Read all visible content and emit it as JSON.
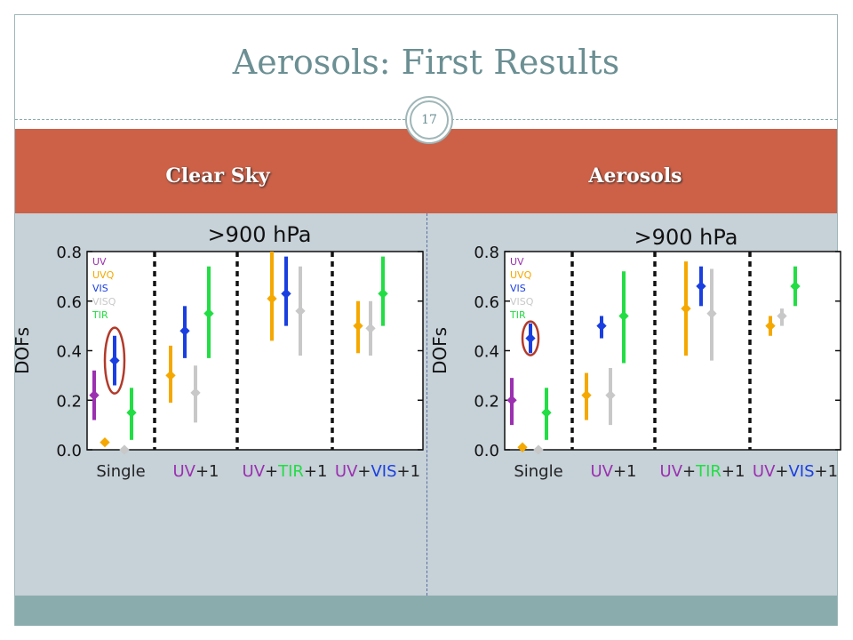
{
  "slide": {
    "title": "Aerosols: First Results",
    "number": "17",
    "columns": [
      "Clear Sky",
      "Aerosols"
    ],
    "colors": {
      "header_band": "#cc6148",
      "body_bg": "#c6d1d8",
      "footer_band": "#8aacad",
      "title_text": "#6b8f93"
    }
  },
  "chart_data": [
    {
      "type": "scatter",
      "panel": "Clear Sky",
      "title": ">900 hPa",
      "ylabel": "DOFs",
      "ylim": [
        0.0,
        0.8
      ],
      "yticks": [
        "0.0",
        "0.2",
        "0.4",
        "0.6",
        "0.8"
      ],
      "groups": [
        {
          "label": [
            {
              "text": "Single",
              "color": "#222222"
            }
          ]
        },
        {
          "label": [
            {
              "text": "UV",
              "color": "#9b30b0"
            },
            {
              "text": "+1",
              "color": "#222222"
            }
          ]
        },
        {
          "label": [
            {
              "text": "UV",
              "color": "#9b30b0"
            },
            {
              "text": "+",
              "color": "#222222"
            },
            {
              "text": "TIR",
              "color": "#22dd44"
            },
            {
              "text": "+1",
              "color": "#222222"
            }
          ]
        },
        {
          "label": [
            {
              "text": "UV",
              "color": "#9b30b0"
            },
            {
              "text": "+",
              "color": "#222222"
            },
            {
              "text": "VIS",
              "color": "#1a3fe0"
            },
            {
              "text": "+1",
              "color": "#222222"
            }
          ]
        }
      ],
      "legend": [
        {
          "name": "UV",
          "color": "#9b30b0"
        },
        {
          "name": "UVQ",
          "color": "#f5a800"
        },
        {
          "name": "VIS",
          "color": "#1a3fe0"
        },
        {
          "name": "VISQ",
          "color": "#c8c8c8"
        },
        {
          "name": "TIR",
          "color": "#22dd44"
        }
      ],
      "series": [
        {
          "group": 0,
          "slot": 0,
          "color": "#9b30b0",
          "y": 0.22,
          "lo": 0.12,
          "hi": 0.32
        },
        {
          "group": 0,
          "slot": 1,
          "color": "#f5a800",
          "y": 0.03,
          "lo": 0.02,
          "hi": 0.04
        },
        {
          "group": 0,
          "slot": 2,
          "color": "#1a3fe0",
          "y": 0.36,
          "lo": 0.26,
          "hi": 0.46
        },
        {
          "group": 0,
          "slot": 3,
          "color": "#c8c8c8",
          "y": 0.0,
          "lo": 0.0,
          "hi": 0.0
        },
        {
          "group": 0,
          "slot": 4,
          "color": "#22dd44",
          "y": 0.15,
          "lo": 0.04,
          "hi": 0.25
        },
        {
          "group": 1,
          "slot": 0,
          "color": "#f5a800",
          "y": 0.3,
          "lo": 0.19,
          "hi": 0.42
        },
        {
          "group": 1,
          "slot": 1,
          "color": "#1a3fe0",
          "y": 0.48,
          "lo": 0.37,
          "hi": 0.58
        },
        {
          "group": 1,
          "slot": 2,
          "color": "#c8c8c8",
          "y": 0.23,
          "lo": 0.11,
          "hi": 0.34
        },
        {
          "group": 1,
          "slot": 3,
          "color": "#22dd44",
          "y": 0.55,
          "lo": 0.37,
          "hi": 0.74
        },
        {
          "group": 2,
          "slot": 0,
          "color": "#f5a800",
          "y": 0.61,
          "lo": 0.44,
          "hi": 0.8
        },
        {
          "group": 2,
          "slot": 1,
          "color": "#1a3fe0",
          "y": 0.63,
          "lo": 0.5,
          "hi": 0.78
        },
        {
          "group": 2,
          "slot": 2,
          "color": "#c8c8c8",
          "y": 0.56,
          "lo": 0.38,
          "hi": 0.74
        },
        {
          "group": 3,
          "slot": 0,
          "color": "#f5a800",
          "y": 0.5,
          "lo": 0.39,
          "hi": 0.6
        },
        {
          "group": 3,
          "slot": 1,
          "color": "#c8c8c8",
          "y": 0.49,
          "lo": 0.38,
          "hi": 0.6
        },
        {
          "group": 3,
          "slot": 2,
          "color": "#22dd44",
          "y": 0.63,
          "lo": 0.5,
          "hi": 0.78
        }
      ],
      "highlight": {
        "group": 0,
        "slot": 2,
        "y_center": 0.36
      }
    },
    {
      "type": "scatter",
      "panel": "Aerosols",
      "title": ">900 hPa",
      "ylabel": "DOFs",
      "ylim": [
        0.0,
        0.8
      ],
      "yticks": [
        "0.0",
        "0.2",
        "0.4",
        "0.6",
        "0.8"
      ],
      "groups": [
        {
          "label": [
            {
              "text": "Single",
              "color": "#222222"
            }
          ]
        },
        {
          "label": [
            {
              "text": "UV",
              "color": "#9b30b0"
            },
            {
              "text": "+1",
              "color": "#222222"
            }
          ]
        },
        {
          "label": [
            {
              "text": "UV",
              "color": "#9b30b0"
            },
            {
              "text": "+",
              "color": "#222222"
            },
            {
              "text": "TIR",
              "color": "#22dd44"
            },
            {
              "text": "+1",
              "color": "#222222"
            }
          ]
        },
        {
          "label": [
            {
              "text": "UV",
              "color": "#9b30b0"
            },
            {
              "text": "+",
              "color": "#222222"
            },
            {
              "text": "VIS",
              "color": "#1a3fe0"
            },
            {
              "text": "+1",
              "color": "#222222"
            }
          ]
        }
      ],
      "legend": [
        {
          "name": "UV",
          "color": "#9b30b0"
        },
        {
          "name": "UVQ",
          "color": "#f5a800"
        },
        {
          "name": "VIS",
          "color": "#1a3fe0"
        },
        {
          "name": "VISQ",
          "color": "#c8c8c8"
        },
        {
          "name": "TIR",
          "color": "#22dd44"
        }
      ],
      "series": [
        {
          "group": 0,
          "slot": 0,
          "color": "#9b30b0",
          "y": 0.2,
          "lo": 0.1,
          "hi": 0.29
        },
        {
          "group": 0,
          "slot": 1,
          "color": "#f5a800",
          "y": 0.01,
          "lo": 0.0,
          "hi": 0.02
        },
        {
          "group": 0,
          "slot": 2,
          "color": "#1a3fe0",
          "y": 0.45,
          "lo": 0.39,
          "hi": 0.51
        },
        {
          "group": 0,
          "slot": 3,
          "color": "#c8c8c8",
          "y": 0.0,
          "lo": 0.0,
          "hi": 0.0
        },
        {
          "group": 0,
          "slot": 4,
          "color": "#22dd44",
          "y": 0.15,
          "lo": 0.04,
          "hi": 0.25
        },
        {
          "group": 1,
          "slot": 0,
          "color": "#f5a800",
          "y": 0.22,
          "lo": 0.12,
          "hi": 0.31
        },
        {
          "group": 1,
          "slot": 1,
          "color": "#1a3fe0",
          "y": 0.5,
          "lo": 0.45,
          "hi": 0.54
        },
        {
          "group": 1,
          "slot": 2,
          "color": "#c8c8c8",
          "y": 0.22,
          "lo": 0.1,
          "hi": 0.33
        },
        {
          "group": 1,
          "slot": 3,
          "color": "#22dd44",
          "y": 0.54,
          "lo": 0.35,
          "hi": 0.72
        },
        {
          "group": 2,
          "slot": 0,
          "color": "#f5a800",
          "y": 0.57,
          "lo": 0.38,
          "hi": 0.76
        },
        {
          "group": 2,
          "slot": 1,
          "color": "#1a3fe0",
          "y": 0.66,
          "lo": 0.58,
          "hi": 0.74
        },
        {
          "group": 2,
          "slot": 2,
          "color": "#c8c8c8",
          "y": 0.55,
          "lo": 0.36,
          "hi": 0.73
        },
        {
          "group": 3,
          "slot": 0,
          "color": "#f5a800",
          "y": 0.5,
          "lo": 0.46,
          "hi": 0.54
        },
        {
          "group": 3,
          "slot": 1,
          "color": "#c8c8c8",
          "y": 0.54,
          "lo": 0.5,
          "hi": 0.57
        },
        {
          "group": 3,
          "slot": 2,
          "color": "#22dd44",
          "y": 0.66,
          "lo": 0.58,
          "hi": 0.74
        }
      ],
      "highlight": {
        "group": 0,
        "slot": 2,
        "y_center": 0.45
      }
    }
  ]
}
